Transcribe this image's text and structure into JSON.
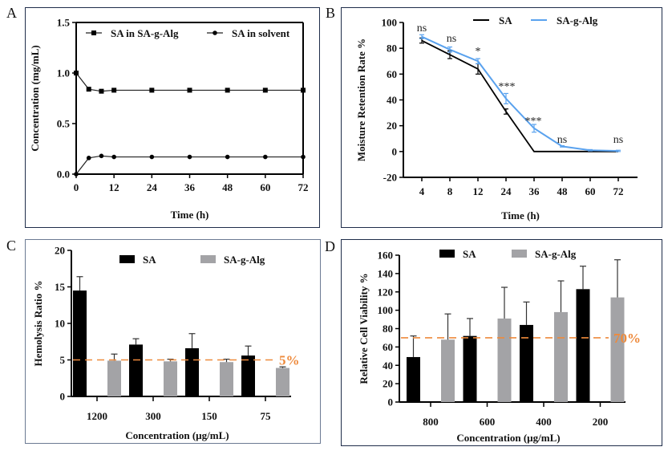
{
  "panels": {
    "A": {
      "label": "A"
    },
    "B": {
      "label": "B"
    },
    "C": {
      "label": "C"
    },
    "D": {
      "label": "D"
    }
  },
  "colors": {
    "black_series": "#000000",
    "blue_series": "#5aa2ee",
    "gray_series": "#a3a3a6",
    "threshold": "#ee8a3c",
    "frame": "#1f2d4a"
  },
  "chart_data": [
    {
      "id": "A",
      "type": "line",
      "title": "",
      "xlabel": "Time (h)",
      "ylabel": "Concentration (mg/mL)",
      "xlim": [
        0,
        72
      ],
      "ylim": [
        0,
        1.5
      ],
      "xticks": [
        "0",
        "12",
        "24",
        "36",
        "48",
        "60",
        "72"
      ],
      "xtick_values": [
        0,
        12,
        24,
        36,
        48,
        60,
        72
      ],
      "yticks": [
        "0.0",
        "0.5",
        "1.0",
        "1.5"
      ],
      "ytick_values": [
        0,
        0.5,
        1.0,
        1.5
      ],
      "legend_position": "top",
      "x": [
        0,
        4,
        8,
        12,
        24,
        36,
        48,
        60,
        72
      ],
      "series": [
        {
          "name": "SA in SA-g-Alg",
          "marker": "square",
          "values": [
            1.0,
            0.84,
            0.82,
            0.83,
            0.83,
            0.83,
            0.83,
            0.83,
            0.83
          ]
        },
        {
          "name": "SA in solvent",
          "marker": "circle",
          "values": [
            0.0,
            0.16,
            0.18,
            0.17,
            0.17,
            0.17,
            0.17,
            0.17,
            0.17
          ]
        }
      ]
    },
    {
      "id": "B",
      "type": "line",
      "title": "",
      "xlabel": "Time (h)",
      "ylabel": "Moisture Retention Rate %",
      "categories": [
        "4",
        "8",
        "12",
        "24",
        "36",
        "48",
        "60",
        "72"
      ],
      "ylim": [
        -20,
        100
      ],
      "yticks": [
        "-20",
        "0",
        "20",
        "40",
        "60",
        "80",
        "100"
      ],
      "ytick_values": [
        -20,
        0,
        20,
        40,
        60,
        80,
        100
      ],
      "legend_position": "top",
      "series": [
        {
          "name": "SA",
          "values": [
            86,
            75,
            64,
            31,
            0,
            0,
            0,
            0
          ],
          "errors": [
            2,
            3,
            4,
            2,
            0,
            0,
            0,
            0
          ]
        },
        {
          "name": "SA-g-Alg",
          "values": [
            89,
            79,
            70,
            41,
            18,
            4,
            1,
            0.5
          ],
          "errors": [
            1.5,
            2,
            2,
            4,
            3,
            0.5,
            0.5,
            0.5
          ]
        }
      ],
      "annotations": [
        "ns",
        "ns",
        "*",
        "***",
        "***",
        "ns",
        "",
        "ns"
      ]
    },
    {
      "id": "C",
      "type": "bar",
      "title": "",
      "xlabel": "Concentration (µg/mL)",
      "ylabel": "Hemolysis Ratio %",
      "categories": [
        "1200",
        "300",
        "150",
        "75"
      ],
      "ylim": [
        0,
        20
      ],
      "yticks": [
        "0",
        "5",
        "10",
        "15",
        "20"
      ],
      "ytick_values": [
        0,
        5,
        10,
        15,
        20
      ],
      "legend_position": "top",
      "series": [
        {
          "name": "SA",
          "values": [
            14.5,
            7.1,
            6.6,
            5.6
          ],
          "errors": [
            1.9,
            0.8,
            2.0,
            1.3
          ]
        },
        {
          "name": "SA-g-Alg",
          "values": [
            4.9,
            4.8,
            4.7,
            3.9
          ],
          "errors": [
            0.9,
            0.3,
            0.4,
            0.15
          ]
        }
      ],
      "threshold": {
        "value": 5,
        "label": "5%"
      }
    },
    {
      "id": "D",
      "type": "bar",
      "title": "",
      "xlabel": "Concentration (µg/mL)",
      "ylabel": "Relative Cell Viability %",
      "categories": [
        "800",
        "600",
        "400",
        "200"
      ],
      "ylim": [
        0,
        160
      ],
      "yticks": [
        "0",
        "20",
        "40",
        "60",
        "80",
        "100",
        "120",
        "140",
        "160"
      ],
      "ytick_values": [
        0,
        20,
        40,
        60,
        80,
        100,
        120,
        140,
        160
      ],
      "legend_position": "top",
      "series": [
        {
          "name": "SA",
          "values": [
            49,
            72,
            84,
            123
          ],
          "errors": [
            23,
            19,
            25,
            25
          ]
        },
        {
          "name": "SA-g-Alg",
          "values": [
            68,
            91,
            98,
            114
          ],
          "errors": [
            28,
            34,
            34,
            41
          ]
        }
      ],
      "threshold": {
        "value": 70,
        "label": "70%"
      }
    }
  ]
}
